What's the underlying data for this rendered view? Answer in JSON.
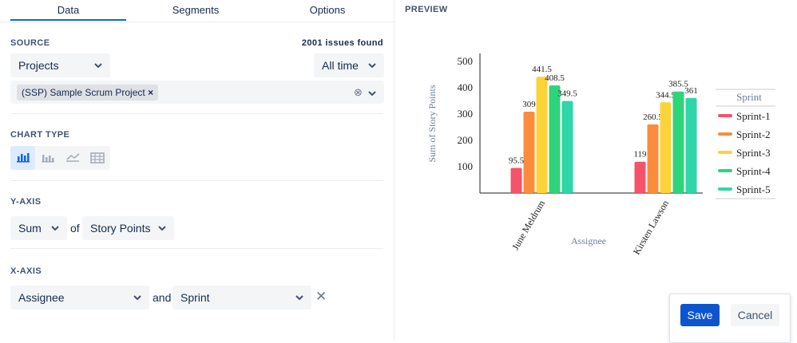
{
  "tabs": [
    "Data",
    "Segments",
    "Options"
  ],
  "source": {
    "label": "SOURCE",
    "count": "2001 issues found",
    "project_select": "Projects",
    "time_select": "All time",
    "project_tag": "(SSP) Sample Scrum Project"
  },
  "chart_type": {
    "label": "CHART TYPE"
  },
  "y_axis_config": {
    "label": "Y-AXIS",
    "aggregate": "Sum",
    "of": "of",
    "field": "Story Points"
  },
  "x_axis_config": {
    "label": "X-AXIS",
    "field": "Assignee",
    "and": "and",
    "group": "Sprint"
  },
  "preview": {
    "label": "PREVIEW"
  },
  "buttons": {
    "save": "Save",
    "cancel": "Cancel"
  },
  "chart_data": {
    "type": "bar",
    "x_label": "Assignee",
    "y_label": "Sum of Story Points",
    "legend_title": "Sprint",
    "categories": [
      "June Meldrum",
      "Kirsten Lawson"
    ],
    "series": [
      {
        "name": "Sprint-1",
        "color": "#f4536a",
        "values": [
          95.5,
          119
        ]
      },
      {
        "name": "Sprint-2",
        "color": "#fb8c3c",
        "values": [
          309,
          260.5
        ]
      },
      {
        "name": "Sprint-3",
        "color": "#fdd33a",
        "values": [
          441.5,
          344.5
        ]
      },
      {
        "name": "Sprint-4",
        "color": "#2ed47a",
        "values": [
          408.5,
          385.5
        ]
      },
      {
        "name": "Sprint-5",
        "color": "#2fd6a8",
        "values": [
          349.5,
          361
        ]
      }
    ],
    "ylim": [
      0,
      530
    ],
    "yticks": [
      100,
      200,
      300,
      400,
      500
    ],
    "grid": false
  }
}
